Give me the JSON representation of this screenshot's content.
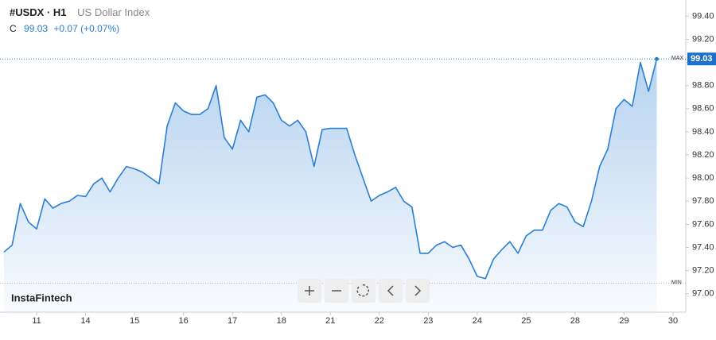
{
  "header": {
    "title": "#USDX · H1",
    "subtitle": "US Dollar Index",
    "close_prefix": "C",
    "close": "99.03",
    "change": "+0.07 (+0.07%)"
  },
  "watermark": "InstaFintech",
  "chart_data": {
    "type": "line",
    "color": "#2a7fd4",
    "grid": false,
    "categories": [
      null,
      null,
      null,
      null,
      "11",
      null,
      null,
      null,
      null,
      null,
      "14",
      null,
      null,
      null,
      null,
      null,
      "15",
      null,
      null,
      null,
      null,
      null,
      "16",
      null,
      null,
      null,
      null,
      null,
      "17",
      null,
      null,
      null,
      null,
      null,
      "18",
      null,
      null,
      null,
      null,
      null,
      "21",
      null,
      null,
      null,
      null,
      null,
      "22",
      null,
      null,
      null,
      null,
      null,
      "23",
      null,
      null,
      null,
      null,
      null,
      "24",
      null,
      null,
      null,
      null,
      null,
      "25",
      null,
      null,
      null,
      null,
      null,
      "28",
      null,
      null,
      null,
      null,
      null,
      "29",
      null,
      null,
      null,
      null,
      null,
      "30"
    ],
    "values": [
      97.36,
      97.42,
      97.78,
      97.62,
      97.56,
      97.82,
      97.74,
      97.78,
      97.8,
      97.85,
      97.84,
      97.95,
      98.0,
      97.88,
      98.0,
      98.1,
      98.08,
      98.05,
      98.0,
      97.95,
      98.45,
      98.65,
      98.58,
      98.55,
      98.55,
      98.6,
      98.8,
      98.35,
      98.25,
      98.5,
      98.4,
      98.7,
      98.72,
      98.65,
      98.5,
      98.45,
      98.5,
      98.4,
      98.1,
      98.42,
      98.43,
      98.43,
      98.43,
      98.2,
      98.0,
      97.8,
      97.85,
      97.88,
      97.92,
      97.8,
      97.75,
      97.35,
      97.35,
      97.42,
      97.45,
      97.4,
      97.42,
      97.3,
      97.15,
      97.13,
      97.3,
      97.38,
      97.45,
      97.35,
      97.5,
      97.55,
      97.55,
      97.72,
      97.78,
      97.75,
      97.62,
      97.58,
      97.8,
      98.1,
      98.25,
      98.6,
      98.68,
      98.62,
      99.0,
      98.75,
      99.03,
      null,
      null
    ],
    "last_label": "99.03",
    "max": {
      "label": "MAX",
      "value": 99.03
    },
    "min": {
      "label": "MIN",
      "value": 97.09
    },
    "ylim": [
      96.84,
      99.54
    ],
    "yticks": [
      {
        "value": 97.0,
        "label": "97.00"
      },
      {
        "value": 97.2,
        "label": "97.20"
      },
      {
        "value": 97.4,
        "label": "97.40"
      },
      {
        "value": 97.6,
        "label": "97.60"
      },
      {
        "value": 97.8,
        "label": "97.80"
      },
      {
        "value": 98.0,
        "label": "98.00"
      },
      {
        "value": 98.2,
        "label": "98.20"
      },
      {
        "value": 98.4,
        "label": "98.40"
      },
      {
        "value": 98.6,
        "label": "98.60"
      },
      {
        "value": 98.8,
        "label": "98.80"
      },
      {
        "value": 99.0,
        "label": "99.00"
      },
      {
        "value": 99.2,
        "label": "99.20"
      },
      {
        "value": 99.4,
        "label": "99.40"
      }
    ]
  }
}
